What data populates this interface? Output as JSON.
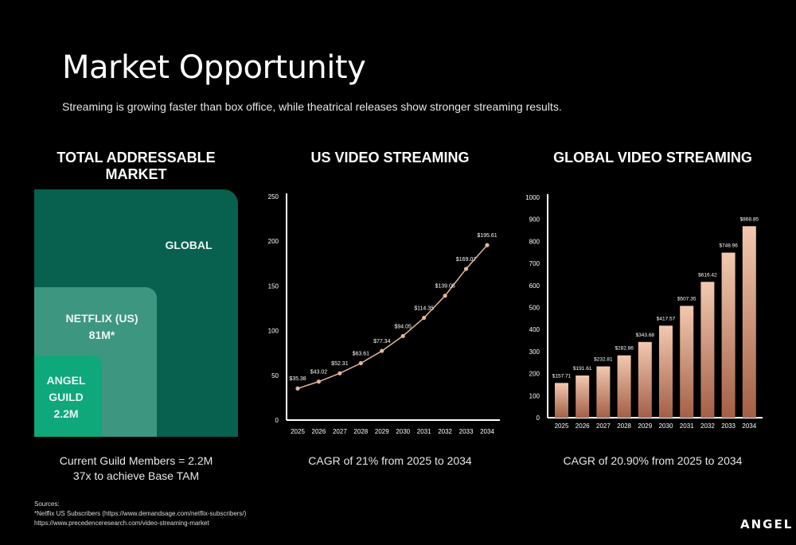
{
  "header": {
    "title": "Market Opportunity",
    "subtitle": "Streaming is growing faster than box office, while theatrical releases show stronger streaming results."
  },
  "tam": {
    "title": "TOTAL ADDRESSABLE MARKET",
    "global_label": "GLOBAL",
    "netflix_label_1": "NETFLIX (US)",
    "netflix_label_2": "81M*",
    "angel_label_1": "ANGEL",
    "angel_label_2": "GUILD",
    "angel_label_3": "2.2M",
    "caption_1": "Current Guild Members = 2.2M",
    "caption_2": "37x to achieve Base TAM",
    "colors": {
      "global": "#08604e",
      "netflix": "#3d9680",
      "angel": "#0ea87b"
    }
  },
  "us_chart": {
    "section_title": "US VIDEO STREAMING",
    "caption": "CAGR of 21% from 2025 to 2034"
  },
  "global_chart": {
    "section_title": "GLOBAL VIDEO STREAMING",
    "caption": "CAGR of 20.90% from 2025 to 2034"
  },
  "sources": {
    "heading": "Sources:",
    "line_1": "*Netflix US Subscribers (https://www.demandsage.com/netflix-subscribers/)",
    "line_2": "https://www.precedenceresearch.com/video-streaming-market"
  },
  "logo": {
    "text": "ANGEL"
  },
  "chart_data": [
    {
      "type": "line",
      "title": "US VIDEO STREAMING",
      "x": [
        "2025",
        "2026",
        "2027",
        "2028",
        "2029",
        "2030",
        "2031",
        "2032",
        "2033",
        "2034"
      ],
      "y": [
        35.38,
        43.02,
        52.31,
        63.61,
        77.34,
        94.05,
        114.35,
        139.05,
        169.07,
        195.61
      ],
      "data_labels": [
        "$35.38",
        "$43.02",
        "$52.31",
        "$63.61",
        "$77.34",
        "$94.05",
        "$114.35",
        "$139.05",
        "$169.07",
        "$195.61"
      ],
      "ylim": [
        0,
        250
      ],
      "yticks": [
        0,
        50,
        100,
        150,
        200,
        250
      ],
      "color": "#e2b6a0",
      "grid": false
    },
    {
      "type": "bar",
      "title": "GLOBAL VIDEO STREAMING",
      "categories": [
        "2025",
        "2026",
        "2027",
        "2028",
        "2029",
        "2030",
        "2031",
        "2032",
        "2033",
        "2034"
      ],
      "values": [
        157.71,
        191.61,
        232.81,
        282.86,
        343.68,
        417.57,
        507.35,
        616.42,
        748.96,
        868.85
      ],
      "data_labels": [
        "$157.71",
        "$191.61",
        "$232.81",
        "$282.86",
        "$343.68",
        "$417.57",
        "$507.35",
        "$616.42",
        "$748.96",
        "$868.85"
      ],
      "ylim": [
        0,
        1000
      ],
      "yticks": [
        0,
        100,
        200,
        300,
        400,
        500,
        600,
        700,
        800,
        900,
        1000
      ],
      "colors": {
        "bottom": "#a35f46",
        "top": "#f2c9b0"
      },
      "grid": false
    }
  ]
}
